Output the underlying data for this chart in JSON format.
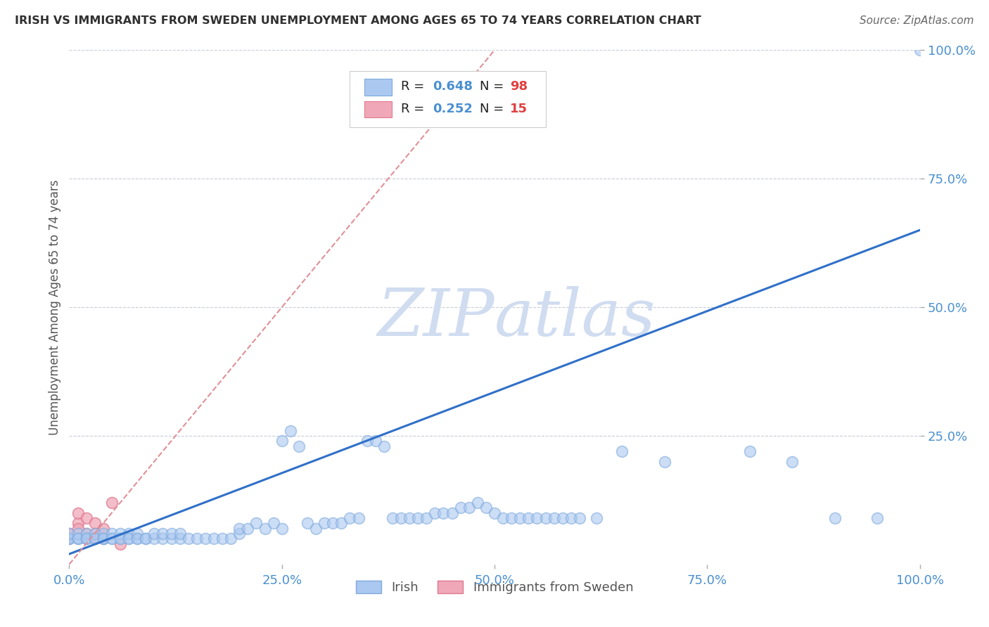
{
  "title": "IRISH VS IMMIGRANTS FROM SWEDEN UNEMPLOYMENT AMONG AGES 65 TO 74 YEARS CORRELATION CHART",
  "source": "Source: ZipAtlas.com",
  "ylabel_label": "Unemployment Among Ages 65 to 74 years",
  "xlim": [
    0,
    100
  ],
  "ylim": [
    0,
    100
  ],
  "irish_R": 0.648,
  "irish_N": 98,
  "sweden_R": 0.252,
  "sweden_N": 15,
  "irish_color": "#aac8f0",
  "irish_edge_color": "#80aadc",
  "sweden_color": "#f0a8b8",
  "sweden_edge_color": "#e07890",
  "irish_line_color": "#3070c8",
  "sweden_line_color": "#e09098",
  "grid_color": "#c8ccd8",
  "title_color": "#303030",
  "axis_label_color": "#555555",
  "tick_label_color": "#4a90d0",
  "source_color": "#666666",
  "legend_label1": "Irish",
  "legend_label2": "Immigrants from Sweden",
  "R_label_color": "#4a90d0",
  "N_label_color": "#e04040",
  "watermark_color": "#d0dcf0",
  "irish_line_x0": 0,
  "irish_line_y0": 2,
  "irish_line_x1": 100,
  "irish_line_y1": 65,
  "sweden_line_x0": 0,
  "sweden_line_y0": 0,
  "sweden_line_x1": 50,
  "sweden_line_y1": 100,
  "irish_x": [
    0,
    0,
    0,
    0,
    1,
    1,
    1,
    1,
    2,
    2,
    2,
    2,
    3,
    3,
    3,
    4,
    4,
    4,
    4,
    5,
    5,
    5,
    6,
    6,
    6,
    7,
    7,
    7,
    8,
    8,
    8,
    9,
    9,
    10,
    10,
    11,
    11,
    12,
    12,
    13,
    13,
    14,
    15,
    16,
    17,
    18,
    19,
    20,
    20,
    21,
    22,
    23,
    24,
    25,
    25,
    26,
    27,
    28,
    29,
    30,
    31,
    32,
    33,
    34,
    35,
    36,
    37,
    38,
    39,
    40,
    41,
    42,
    43,
    44,
    45,
    46,
    47,
    48,
    49,
    50,
    51,
    52,
    53,
    54,
    55,
    56,
    57,
    58,
    59,
    60,
    62,
    65,
    70,
    80,
    85,
    90,
    95,
    100
  ],
  "irish_y": [
    5,
    5,
    5,
    6,
    5,
    5,
    6,
    5,
    5,
    5,
    6,
    5,
    5,
    6,
    5,
    5,
    5,
    6,
    5,
    5,
    6,
    5,
    5,
    6,
    5,
    5,
    6,
    5,
    5,
    6,
    5,
    5,
    5,
    5,
    6,
    5,
    6,
    5,
    6,
    5,
    6,
    5,
    5,
    5,
    5,
    5,
    5,
    6,
    7,
    7,
    8,
    7,
    8,
    24,
    7,
    26,
    23,
    8,
    7,
    8,
    8,
    8,
    9,
    9,
    24,
    24,
    23,
    9,
    9,
    9,
    9,
    9,
    10,
    10,
    10,
    11,
    11,
    12,
    11,
    10,
    9,
    9,
    9,
    9,
    9,
    9,
    9,
    9,
    9,
    9,
    9,
    22,
    20,
    22,
    20,
    9,
    9,
    100
  ],
  "sweden_x": [
    0,
    0,
    1,
    1,
    1,
    2,
    2,
    2,
    3,
    3,
    3,
    4,
    4,
    5,
    6
  ],
  "sweden_y": [
    5,
    6,
    8,
    10,
    7,
    6,
    5,
    9,
    8,
    6,
    5,
    5,
    7,
    12,
    4
  ]
}
